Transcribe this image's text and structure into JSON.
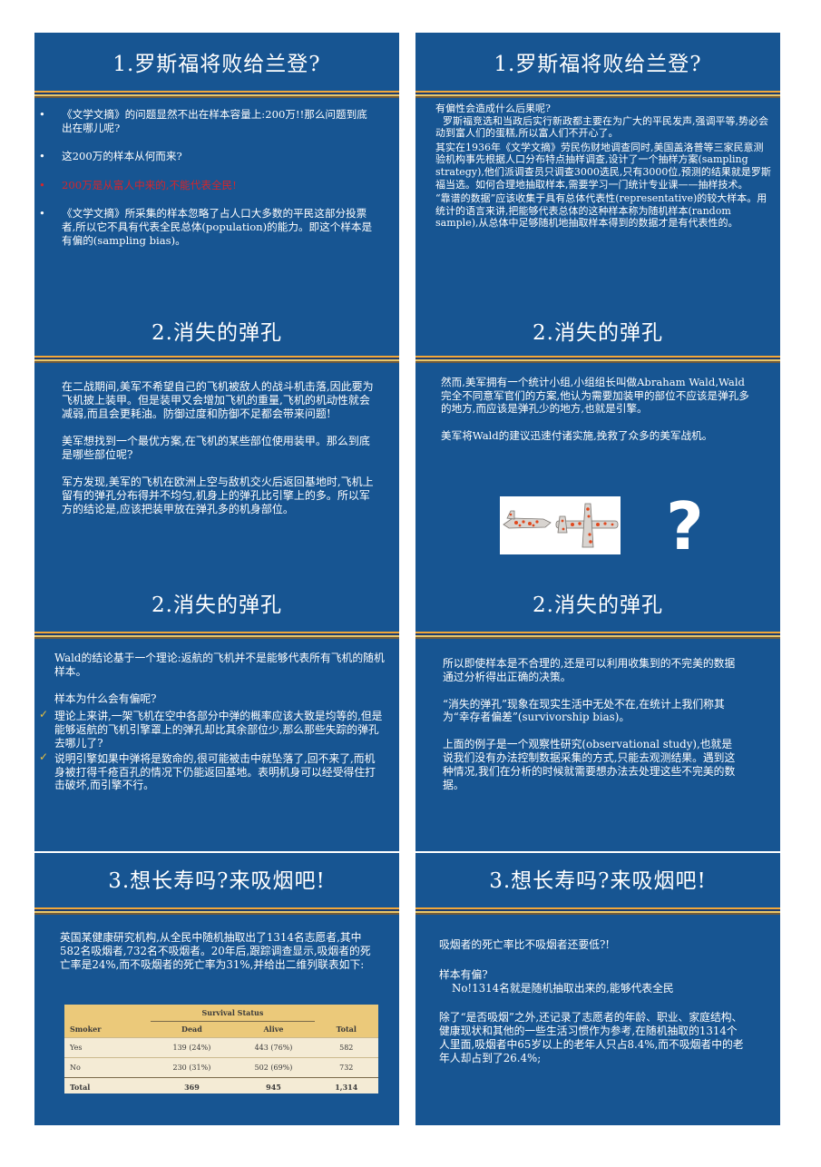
{
  "slides": {
    "s1": {
      "title": "1.罗斯福将败给兰登?",
      "bullets": [
        "《文学文摘》的问题显然不出在样本容量上:200万!!那么问题到底出在哪儿呢?",
        "这200万的样本从何而来?",
        "200万是从富人中来的,不能代表全民!",
        "《文学文摘》所采集的样本忽略了占人口大多数的平民这部分投票者,所以它不具有代表全民总体(population)的能力。即这个样本是有偏的(sampling bias)。"
      ],
      "bullet_marker": "•"
    },
    "s2": {
      "title": "1.罗斯福将败给兰登?",
      "paragraphs": [
        "有偏性会造成什么后果呢?",
        "罗斯福竞选和当政后实行新政都主要在为广大的平民发声,强调平等,势必会动到富人们的蛋糕,所以富人们不开心了。",
        "其实在1936年《文学文摘》劳民伤财地调查同时,美国盖洛普等三家民意测验机构事先根据人口分布特点抽样调查,设计了一个抽样方案(sampling strategy),他们派调查员只调查3000选民,只有3000位,预测的结果就是罗斯福当选。如何合理地抽取样本,需要学习一门统计专业课——抽样技术。",
        "“靠谱的数据”应该收集于具有总体代表性(representative)的较大样本。用统计的语言来讲,把能够代表总体的这种样本称为随机样本(random sample),从总体中足够随机地抽取样本得到的数据才是有代表性的。"
      ]
    },
    "s3": {
      "title": "2.消失的弹孔",
      "paragraphs": [
        "在二战期间,美军不希望自己的飞机被敌人的战斗机击落,因此要为飞机披上装甲。但是装甲又会增加飞机的重量,飞机的机动性就会减弱,而且会更耗油。防御过度和防御不足都会带来问题!",
        "美军想找到一个最优方案,在飞机的某些部位使用装甲。那么到底是哪些部位呢?",
        "军方发现,美军的飞机在欧洲上空与敌机交火后返回基地时,飞机上留有的弹孔分布得并不均匀,机身上的弹孔比引擎上的多。所以军方的结论是,应该把装甲放在弹孔多的机身部位。"
      ]
    },
    "s4": {
      "title": "2.消失的弹孔",
      "paragraphs": [
        "然而,美军拥有一个统计小组,小组组长叫做Abraham Wald,Wald完全不同意军官们的方案,他认为需要加装甲的部位不应该是弹孔多的地方,而应该是弹孔少的地方,也就是引擎。",
        "美军将Wald的建议迅速付诸实施,挽救了众多的美军战机。"
      ],
      "question_mark": "?"
    },
    "s5": {
      "title": "2.消失的弹孔",
      "lead": "Wald的结论基于一个理论:返航的飞机并不是能够代表所有飞机的随机样本。",
      "question": "样本为什么会有偏呢?",
      "checks": [
        "理论上来讲,一架飞机在空中各部分中弹的概率应该大致是均等的,但是能够返航的飞机引擎罩上的弹孔却比其余部位少,那么那些失踪的弹孔去哪儿了?",
        "说明引擎如果中弹将是致命的,很可能被击中就坠落了,回不来了,而机身被打得千疮百孔的情况下仍能返回基地。表明机身可以经受得住打击破坏,而引擎不行。"
      ],
      "check_marker": "✓"
    },
    "s6": {
      "title": "2.消失的弹孔",
      "paragraphs": [
        "所以即使样本是不合理的,还是可以利用收集到的不完美的数据通过分析得出正确的决策。",
        "“消失的弹孔”现象在现实生活中无处不在,在统计上我们称其为“幸存者偏差”(survivorship bias)。",
        "上面的例子是一个观察性研究(observational study),也就是说我们没有办法控制数据采集的方式,只能去观测结果。遇到这种情况,我们在分析的时候就需要想办法去处理这些不完美的数据。"
      ]
    },
    "s7": {
      "title": "3.想长寿吗?来吸烟吧!",
      "paragraph": "英国某健康研究机构,从全民中随机抽取出了1314名志愿者,其中582名吸烟者,732名不吸烟者。20年后,跟踪调查显示,吸烟者的死亡率是24%,而不吸烟者的死亡率为31%,并给出二维列联表如下:",
      "table": {
        "group_header": "Survival Status",
        "headers": [
          "Smoker",
          "Dead",
          "Alive",
          "Total"
        ],
        "rows": [
          [
            "Yes",
            "139 (24%)",
            "443 (76%)",
            "582"
          ],
          [
            "No",
            "230 (31%)",
            "502 (69%)",
            "732"
          ]
        ],
        "total": [
          "Total",
          "369",
          "945",
          "1,314"
        ]
      }
    },
    "s8": {
      "title": "3.想长寿吗?来吸烟吧!",
      "paragraphs": [
        "吸烟者的死亡率比不吸烟者还要低?!",
        "样本有偏?",
        "No!1314名就是随机抽取出来的,能够代表全民",
        "除了“是否吸烟”之外,还记录了志愿者的年龄、职业、家庭结构、健康现状和其他的一些生活习惯作为参考,在随机抽取的1314个人里面,吸烟者中65岁以上的老年人只占8.4%,而不吸烟者中的老年人却占到了26.4%;"
      ]
    }
  }
}
